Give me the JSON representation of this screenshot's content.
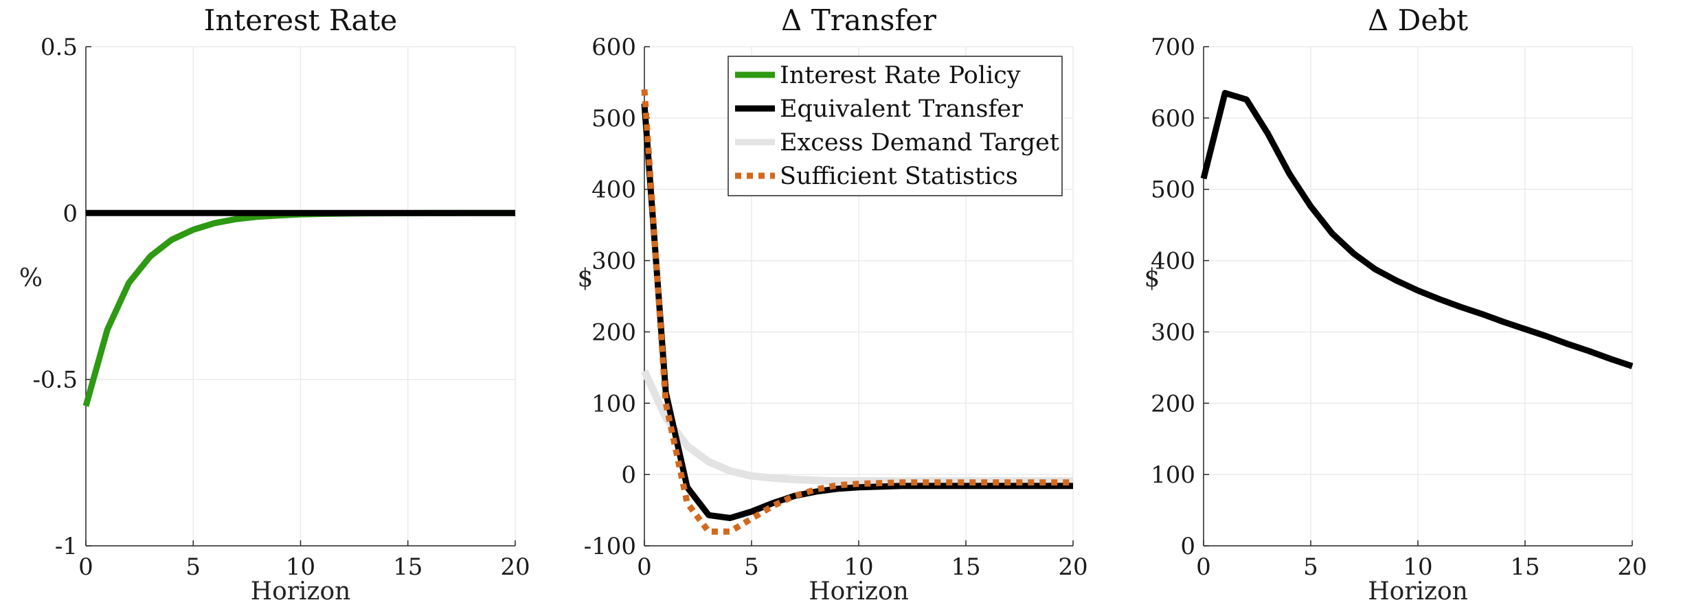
{
  "colors": {
    "green": "#2e9912",
    "black": "#000000",
    "light_gray": "#e3e3e3",
    "orange": "#d2691e",
    "grid": "#ebebeb",
    "axis": "#262626"
  },
  "chart_data": [
    {
      "type": "line",
      "title": "Interest Rate",
      "xlabel": "Horizon",
      "ylabel": "%",
      "xlim": [
        0,
        20
      ],
      "ylim": [
        -1,
        0.5
      ],
      "xticks": [
        0,
        5,
        10,
        15,
        20
      ],
      "xtick_labels": [
        "0",
        "5",
        "10",
        "15",
        "20"
      ],
      "yticks": [
        -1,
        -0.5,
        0,
        0.5
      ],
      "ytick_labels": [
        "-1",
        "-0.5",
        "0",
        "0.5"
      ],
      "grid": true,
      "x": [
        0,
        1,
        2,
        3,
        4,
        5,
        6,
        7,
        8,
        9,
        10,
        11,
        12,
        13,
        14,
        15,
        16,
        17,
        18,
        19,
        20
      ],
      "series": [
        {
          "color": "#2e9912",
          "width": 9,
          "style": "solid",
          "values": [
            -0.58,
            -0.35,
            -0.21,
            -0.13,
            -0.08,
            -0.05,
            -0.03,
            -0.018,
            -0.011,
            -0.007,
            -0.004,
            -0.0025,
            -0.0015,
            -0.001,
            -0.0006,
            -0.0004,
            -0.0002,
            -0.0001,
            0,
            0,
            0
          ]
        },
        {
          "color": "#000000",
          "width": 9,
          "style": "solid",
          "values": [
            0,
            0,
            0,
            0,
            0,
            0,
            0,
            0,
            0,
            0,
            0,
            0,
            0,
            0,
            0,
            0,
            0,
            0,
            0,
            0,
            0
          ]
        }
      ]
    },
    {
      "type": "line",
      "title": "Δ Transfer",
      "xlabel": "Horizon",
      "ylabel": "$",
      "xlim": [
        0,
        20
      ],
      "ylim": [
        -100,
        600
      ],
      "xticks": [
        0,
        5,
        10,
        15,
        20
      ],
      "xtick_labels": [
        "0",
        "5",
        "10",
        "15",
        "20"
      ],
      "yticks": [
        -100,
        0,
        100,
        200,
        300,
        400,
        500,
        600
      ],
      "ytick_labels": [
        "-100",
        "0",
        "100",
        "200",
        "300",
        "400",
        "500",
        "600"
      ],
      "grid": true,
      "legend": {
        "position": "top-right",
        "entries": [
          {
            "label": "Interest Rate Policy",
            "color": "#2e9912",
            "style": "solid"
          },
          {
            "label": "Equivalent Transfer",
            "color": "#000000",
            "style": "solid"
          },
          {
            "label": "Excess Demand Target",
            "color": "#e3e3e3",
            "style": "solid"
          },
          {
            "label": "Sufficient Statistics",
            "color": "#d2691e",
            "style": "dotted"
          }
        ]
      },
      "x": [
        0,
        1,
        2,
        3,
        4,
        5,
        6,
        7,
        8,
        9,
        10,
        11,
        12,
        13,
        14,
        15,
        16,
        17,
        18,
        19,
        20
      ],
      "series": [
        {
          "name": "Excess Demand Target",
          "color": "#e3e3e3",
          "width": 11,
          "style": "solid",
          "values": [
            145,
            80,
            40,
            18,
            5,
            -2,
            -5,
            -7,
            -8,
            -9,
            -9,
            -9,
            -9,
            -9,
            -9,
            -9,
            -9,
            -9,
            -9,
            -9,
            -9
          ]
        },
        {
          "name": "Equivalent Transfer",
          "color": "#000000",
          "width": 9,
          "style": "solid",
          "values": [
            520,
            115,
            -18,
            -57,
            -61,
            -52,
            -40,
            -30,
            -24,
            -20,
            -18,
            -17,
            -16,
            -16,
            -16,
            -16,
            -16,
            -16,
            -16,
            -16,
            -16
          ]
        },
        {
          "name": "Sufficient Statistics",
          "color": "#d2691e",
          "width": 9,
          "style": "dotted",
          "values": [
            540,
            100,
            -40,
            -80,
            -80,
            -62,
            -44,
            -30,
            -21,
            -15,
            -13,
            -12,
            -11,
            -11,
            -11,
            -11,
            -11,
            -11,
            -11,
            -11,
            -11
          ]
        }
      ]
    },
    {
      "type": "line",
      "title": "Δ Debt",
      "xlabel": "Horizon",
      "ylabel": "$",
      "xlim": [
        0,
        20
      ],
      "ylim": [
        0,
        700
      ],
      "xticks": [
        0,
        5,
        10,
        15,
        20
      ],
      "xtick_labels": [
        "0",
        "5",
        "10",
        "15",
        "20"
      ],
      "yticks": [
        0,
        100,
        200,
        300,
        400,
        500,
        600,
        700
      ],
      "ytick_labels": [
        "0",
        "100",
        "200",
        "300",
        "400",
        "500",
        "600",
        "700"
      ],
      "grid": true,
      "x": [
        0,
        1,
        2,
        3,
        4,
        5,
        6,
        7,
        8,
        9,
        10,
        11,
        12,
        13,
        14,
        15,
        16,
        17,
        18,
        19,
        20
      ],
      "series": [
        {
          "color": "#000000",
          "width": 9,
          "style": "solid",
          "values": [
            515,
            635,
            626,
            578,
            522,
            476,
            438,
            410,
            388,
            372,
            358,
            346,
            335,
            325,
            314,
            304,
            294,
            283,
            273,
            262,
            252
          ]
        }
      ]
    }
  ]
}
